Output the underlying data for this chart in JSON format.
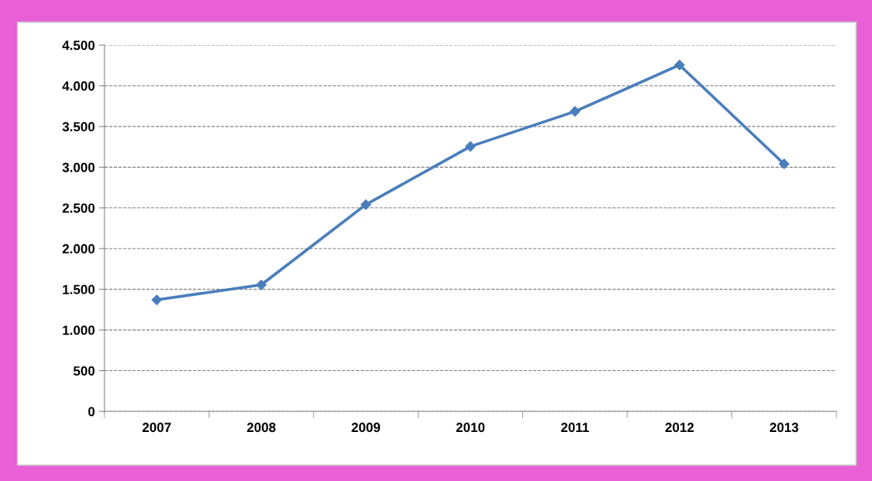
{
  "chart_data": {
    "type": "line",
    "categories": [
      "2007",
      "2008",
      "2009",
      "2010",
      "2011",
      "2012",
      "2013"
    ],
    "series": [
      {
        "color": "#4a7ebb",
        "values": [
          1370,
          1555,
          2540,
          3255,
          3685,
          4255,
          3040
        ]
      }
    ],
    "ylim": [
      0,
      4500
    ],
    "yticks": [
      0,
      500,
      {
        "value": 1000,
        "label": "1.000"
      },
      {
        "value": 1500,
        "label": "1.500"
      },
      {
        "value": 2000,
        "label": "2.000"
      },
      {
        "value": 2500,
        "label": "2.500"
      },
      {
        "value": 3000,
        "label": "3.000"
      },
      {
        "value": 3500,
        "label": "3.500"
      },
      {
        "value": 4000,
        "label": "4.000"
      },
      {
        "value": 4500,
        "label": "4.500"
      }
    ],
    "grid": "y",
    "marker": "diamond",
    "line_style": "solid"
  }
}
